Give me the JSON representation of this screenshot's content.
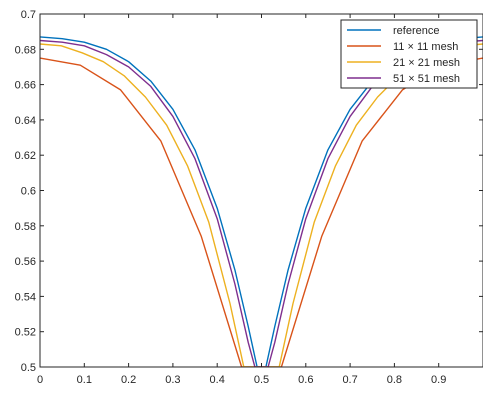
{
  "chart_data": {
    "type": "line",
    "title": "",
    "xlabel": "",
    "ylabel": "",
    "xlim": [
      0,
      1
    ],
    "ylim": [
      0.5,
      0.7
    ],
    "xticks": [
      "0",
      "0.1",
      "0.2",
      "0.3",
      "0.4",
      "0.5",
      "0.6",
      "0.7",
      "0.8",
      "0.9"
    ],
    "xtick_values": [
      0,
      0.1,
      0.2,
      0.3,
      0.4,
      0.5,
      0.6,
      0.7,
      0.8,
      0.9
    ],
    "yticks": [
      "0.5",
      "0.52",
      "0.54",
      "0.56",
      "0.58",
      "0.6",
      "0.62",
      "0.64",
      "0.66",
      "0.68",
      "0.7"
    ],
    "ytick_values": [
      0.5,
      0.52,
      0.54,
      0.56,
      0.58,
      0.6,
      0.62,
      0.64,
      0.66,
      0.68,
      0.7
    ],
    "grid": false,
    "legend_position": "top-right",
    "series": [
      {
        "name": "reference",
        "color": "#0072BD",
        "x": [
          0,
          0.05,
          0.1,
          0.15,
          0.2,
          0.25,
          0.3,
          0.35,
          0.4,
          0.44,
          0.47,
          0.49,
          0.5,
          0.51,
          0.53,
          0.56,
          0.6,
          0.65,
          0.7,
          0.75,
          0.8,
          0.85,
          0.9,
          0.95,
          1.0
        ],
        "y": [
          0.687,
          0.686,
          0.684,
          0.68,
          0.673,
          0.662,
          0.646,
          0.623,
          0.59,
          0.555,
          0.523,
          0.5,
          0.5,
          0.5,
          0.523,
          0.555,
          0.59,
          0.623,
          0.646,
          0.662,
          0.673,
          0.68,
          0.684,
          0.686,
          0.687
        ]
      },
      {
        "name": "11 × 11 mesh",
        "color": "#D95319",
        "x": [
          0,
          0.091,
          0.182,
          0.273,
          0.364,
          0.455,
          0.545,
          0.636,
          0.727,
          0.818,
          0.909,
          1.0
        ],
        "y": [
          0.675,
          0.671,
          0.657,
          0.628,
          0.574,
          0.5,
          0.5,
          0.574,
          0.628,
          0.657,
          0.671,
          0.675
        ]
      },
      {
        "name": "21 × 21 mesh",
        "color": "#EDB120",
        "x": [
          0,
          0.048,
          0.095,
          0.143,
          0.19,
          0.238,
          0.286,
          0.333,
          0.381,
          0.429,
          0.46,
          0.476,
          0.524,
          0.54,
          0.571,
          0.619,
          0.667,
          0.714,
          0.762,
          0.81,
          0.857,
          0.905,
          0.952,
          1.0
        ],
        "y": [
          0.683,
          0.682,
          0.678,
          0.673,
          0.665,
          0.653,
          0.637,
          0.614,
          0.582,
          0.536,
          0.5,
          0.5,
          0.5,
          0.5,
          0.536,
          0.582,
          0.614,
          0.637,
          0.653,
          0.665,
          0.673,
          0.678,
          0.682,
          0.683
        ]
      },
      {
        "name": "51 × 51 mesh",
        "color": "#7E2F8E",
        "x": [
          0,
          0.05,
          0.1,
          0.15,
          0.2,
          0.25,
          0.3,
          0.35,
          0.4,
          0.44,
          0.47,
          0.485,
          0.5,
          0.515,
          0.53,
          0.56,
          0.6,
          0.65,
          0.7,
          0.75,
          0.8,
          0.85,
          0.9,
          0.95,
          1.0
        ],
        "y": [
          0.685,
          0.684,
          0.682,
          0.677,
          0.67,
          0.659,
          0.642,
          0.618,
          0.584,
          0.547,
          0.514,
          0.5,
          0.5,
          0.5,
          0.514,
          0.547,
          0.584,
          0.618,
          0.642,
          0.659,
          0.67,
          0.677,
          0.682,
          0.684,
          0.685
        ]
      }
    ]
  }
}
